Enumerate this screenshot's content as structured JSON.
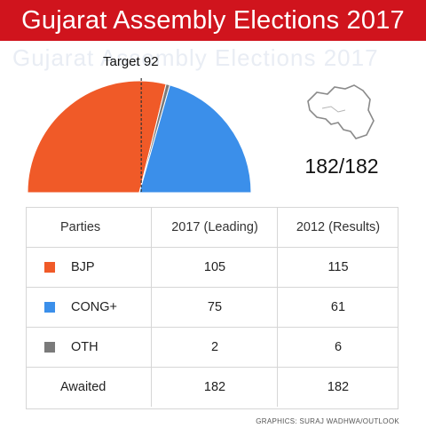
{
  "title": "Gujarat Assembly Elections 2017",
  "target_label": "Target 92",
  "total_label": "182/182",
  "credit": "GRAPHICS: SURAJ WADHWA/OUTLOOK",
  "colors": {
    "banner": "#d0141d",
    "BJP": "#f05a28",
    "CONG+": "#3b8fea",
    "OTH": "#7a7a7a",
    "target_line": "#333333"
  },
  "chart_data": {
    "type": "pie",
    "subtype": "semicircle",
    "total_seats": 182,
    "target": 92,
    "slices": [
      {
        "label": "BJP",
        "value": 105
      },
      {
        "label": "OTH",
        "value": 2
      },
      {
        "label": "CONG+",
        "value": 75
      }
    ]
  },
  "table": {
    "headers": [
      "Parties",
      "2017 (Leading)",
      "2012 (Results)"
    ],
    "rows": [
      {
        "party": "BJP",
        "y2017": "105",
        "y2012": "115",
        "swatch": "#f05a28"
      },
      {
        "party": "CONG+",
        "y2017": "75",
        "y2012": "61",
        "swatch": "#3b8fea"
      },
      {
        "party": "OTH",
        "y2017": "2",
        "y2012": "6",
        "swatch": "#7a7a7a"
      },
      {
        "party": "Awaited",
        "y2017": "182",
        "y2012": "182"
      }
    ]
  },
  "icons": {
    "map": "gujarat-map-icon"
  }
}
